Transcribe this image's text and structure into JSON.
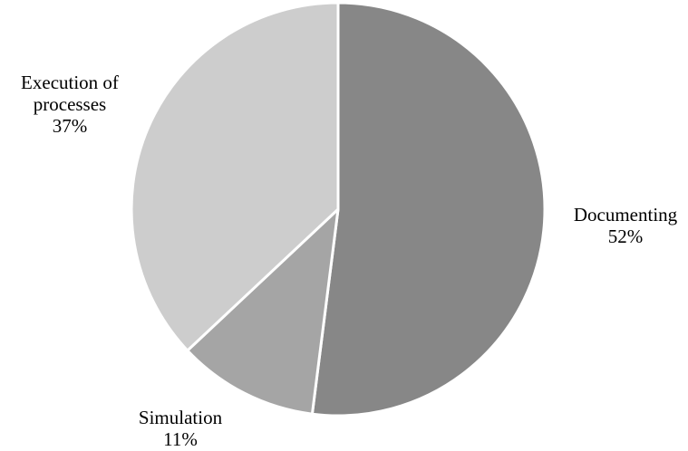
{
  "chart_data": {
    "type": "pie",
    "title": "",
    "start_angle_deg": 0,
    "direction": "clockwise",
    "slices": [
      {
        "label": "Documenting",
        "label_lines": [
          "Documenting"
        ],
        "percent_text": "52%",
        "value": 52,
        "color": "#878787"
      },
      {
        "label": "Simulation",
        "label_lines": [
          "Simulation"
        ],
        "percent_text": "11%",
        "value": 11,
        "color": "#a5a5a5"
      },
      {
        "label": "Execution of processes",
        "label_lines": [
          "Execution of",
          "processes"
        ],
        "percent_text": "37%",
        "value": 37,
        "color": "#cdcdcd"
      }
    ],
    "legend": "none"
  }
}
